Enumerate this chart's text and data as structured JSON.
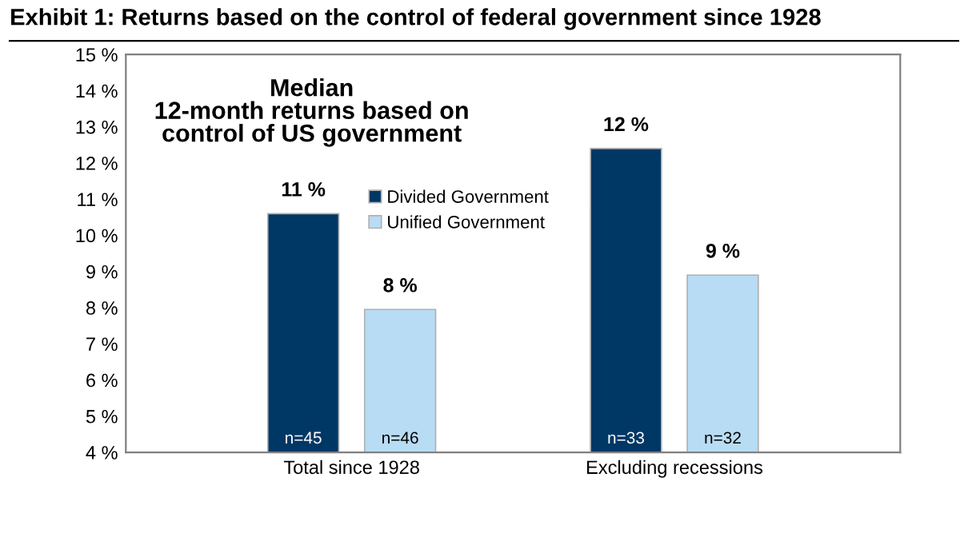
{
  "chart_data": {
    "type": "bar",
    "title": "Exhibit 1: Returns based on the control of federal government since 1928",
    "subtitle": "Median\n12-month returns based on\ncontrol of US government",
    "categories": [
      "Total since 1928",
      "Excluding recessions"
    ],
    "series": [
      {
        "name": "Divided Government",
        "color": "#003865",
        "values": [
          10.6,
          12.4
        ],
        "value_labels": [
          "11 %",
          "12 %"
        ]
      },
      {
        "name": "Unified Government",
        "color": "#b8dcf4",
        "values": [
          7.95,
          8.9
        ],
        "value_labels": [
          "8 %",
          "9 %"
        ]
      }
    ],
    "annotations": [
      "n=45",
      "n=46",
      "n=33",
      "n=32"
    ],
    "ylim": [
      4,
      15
    ],
    "yticks": [
      {
        "value": 4,
        "label": "4 %"
      },
      {
        "value": 5,
        "label": "5 %"
      },
      {
        "value": 6,
        "label": "6 %"
      },
      {
        "value": 7,
        "label": "7 %"
      },
      {
        "value": 8,
        "label": "8 %"
      },
      {
        "value": 9,
        "label": "9 %"
      },
      {
        "value": 10,
        "label": "10 %"
      },
      {
        "value": 11,
        "label": "11 %"
      },
      {
        "value": 12,
        "label": "12 %"
      },
      {
        "value": 13,
        "label": "13 %"
      },
      {
        "value": 14,
        "label": "14 %"
      },
      {
        "value": 15,
        "label": "15 %"
      }
    ],
    "grid": false,
    "legend": "top"
  }
}
